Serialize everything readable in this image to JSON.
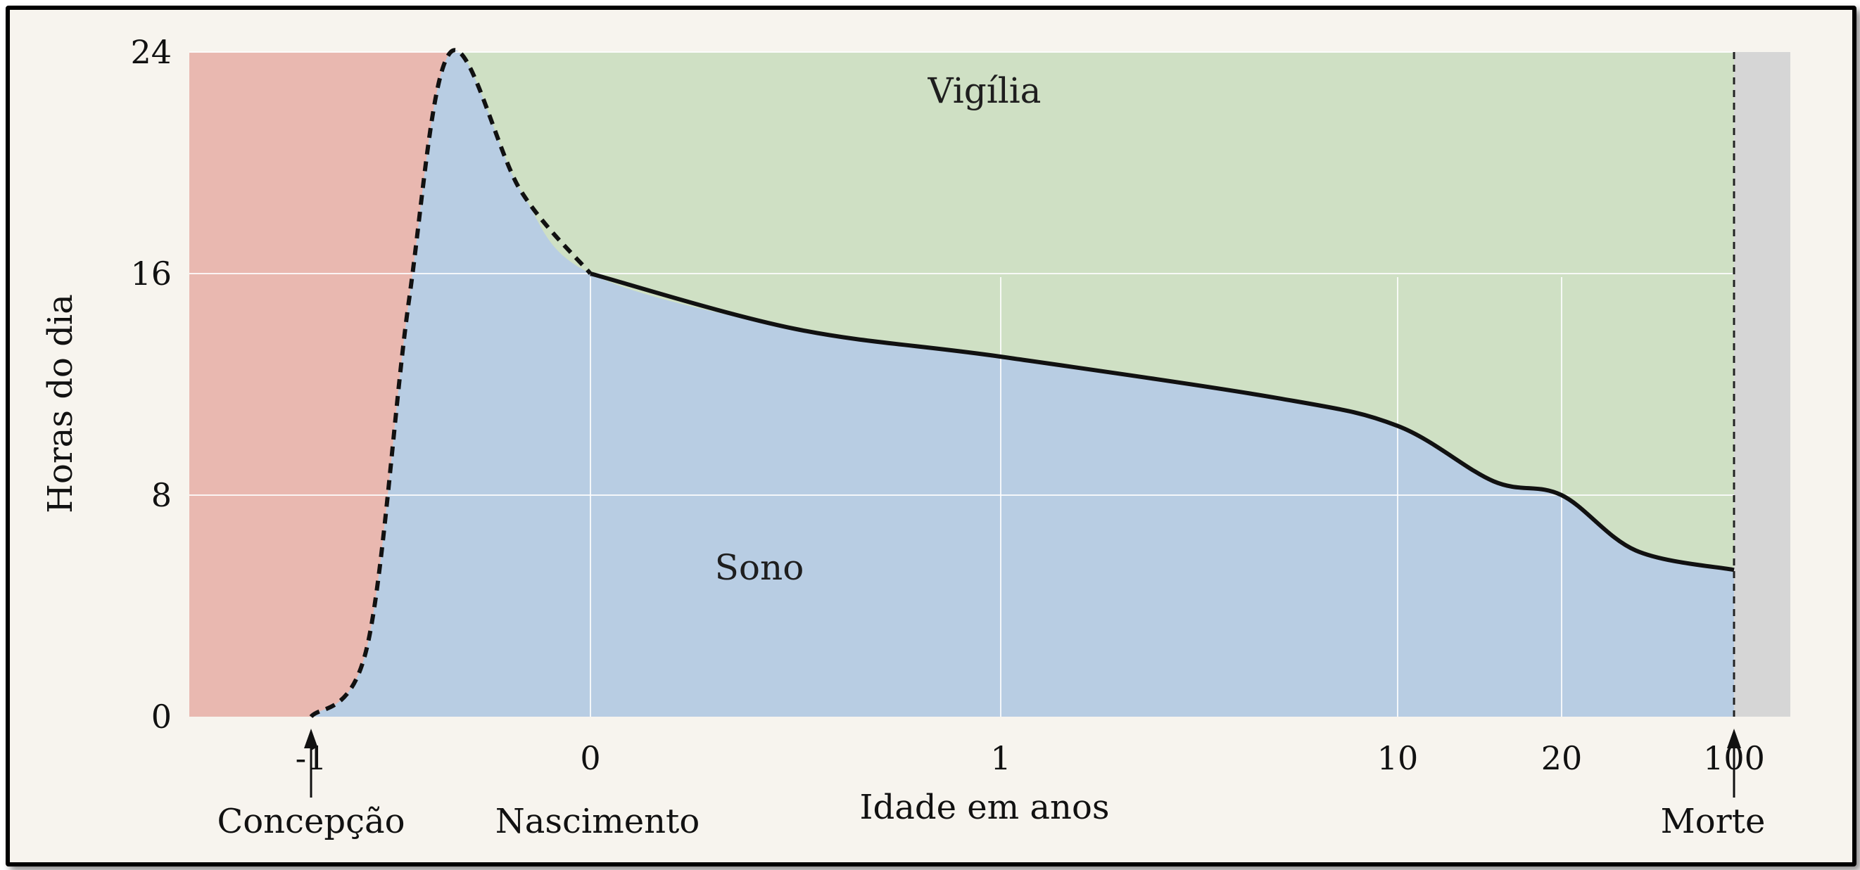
{
  "chart_data": {
    "type": "area",
    "title": "",
    "xlabel": "Idade em anos",
    "ylabel": "Horas do dia",
    "ylim": [
      0,
      24
    ],
    "yticks": [
      "0",
      "8",
      "16",
      "24"
    ],
    "xticks": [
      "-1",
      "0",
      "1",
      "10",
      "20",
      "100"
    ],
    "events": [
      {
        "label": "Concepção",
        "x": "-1"
      },
      {
        "label": "Nascimento",
        "x": "0"
      },
      {
        "label": "Morte",
        "x": "100"
      }
    ],
    "regions": [
      {
        "name": "Vigília",
        "color": "#cfe0c4"
      },
      {
        "name": "Sono",
        "color": "#b8cde3"
      }
    ],
    "prenatal_color": "#e9b8b0",
    "series": [
      {
        "name": "Sono",
        "segments": [
          {
            "style": "dashed",
            "points": [
              {
                "x": "-1",
                "y": 0
              },
              {
                "x": "-0.8",
                "y": 2.5
              },
              {
                "x": "-0.65",
                "y": 15
              },
              {
                "x": "-0.5",
                "y": 24
              },
              {
                "x": "-0.25",
                "y": 19
              },
              {
                "x": "0",
                "y": 16
              }
            ]
          },
          {
            "style": "solid",
            "points": [
              {
                "x": "0",
                "y": 16
              },
              {
                "x": "0.5",
                "y": 14
              },
              {
                "x": "1",
                "y": 13
              },
              {
                "x": "5",
                "y": 11.5
              },
              {
                "x": "10",
                "y": 10.5
              },
              {
                "x": "15",
                "y": 8.5
              },
              {
                "x": "20",
                "y": 8
              },
              {
                "x": "40",
                "y": 6
              },
              {
                "x": "100",
                "y": 5.3
              }
            ]
          }
        ]
      }
    ]
  }
}
